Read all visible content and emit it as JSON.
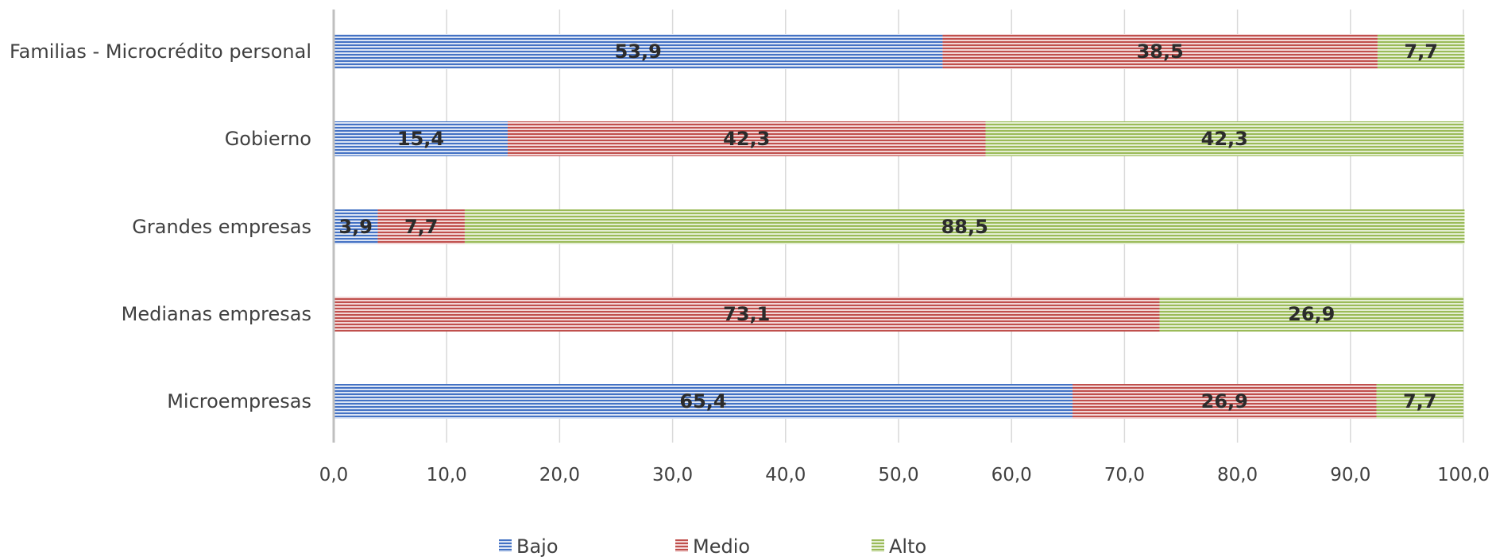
{
  "chart_data": {
    "type": "bar",
    "orientation": "horizontal",
    "stacked": true,
    "categories": [
      "Familias - Microcrédito personal",
      "Gobierno",
      "Grandes empresas",
      "Medianas empresas",
      "Microempresas"
    ],
    "series": [
      {
        "name": "Bajo",
        "color": "#4472c4",
        "values": [
          53.9,
          15.4,
          3.9,
          0,
          65.4
        ],
        "labels": [
          "53,9",
          "15,4",
          "3,9",
          "",
          "65,4"
        ]
      },
      {
        "name": "Medio",
        "color": "#c0504d",
        "values": [
          38.5,
          42.3,
          7.7,
          73.1,
          26.9
        ],
        "labels": [
          "38,5",
          "42,3",
          "7,7",
          "73,1",
          "26,9"
        ]
      },
      {
        "name": "Alto",
        "color": "#9bbb59",
        "values": [
          7.7,
          42.3,
          88.5,
          26.9,
          7.7
        ],
        "labels": [
          "7,7",
          "42,3",
          "88,5",
          "26,9",
          "7,7"
        ]
      }
    ],
    "xlim": [
      0,
      100
    ],
    "ticks": [
      0,
      10,
      20,
      30,
      40,
      50,
      60,
      70,
      80,
      90,
      100
    ],
    "tick_labels": [
      "0,0",
      "10,0",
      "20,0",
      "30,0",
      "40,0",
      "50,0",
      "60,0",
      "70,0",
      "80,0",
      "90,0",
      "100,0"
    ],
    "grid": true,
    "legend": {
      "placement": "bottom",
      "entries": [
        "Bajo",
        "Medio",
        "Alto"
      ]
    },
    "title": "",
    "xlabel": "",
    "ylabel": ""
  }
}
